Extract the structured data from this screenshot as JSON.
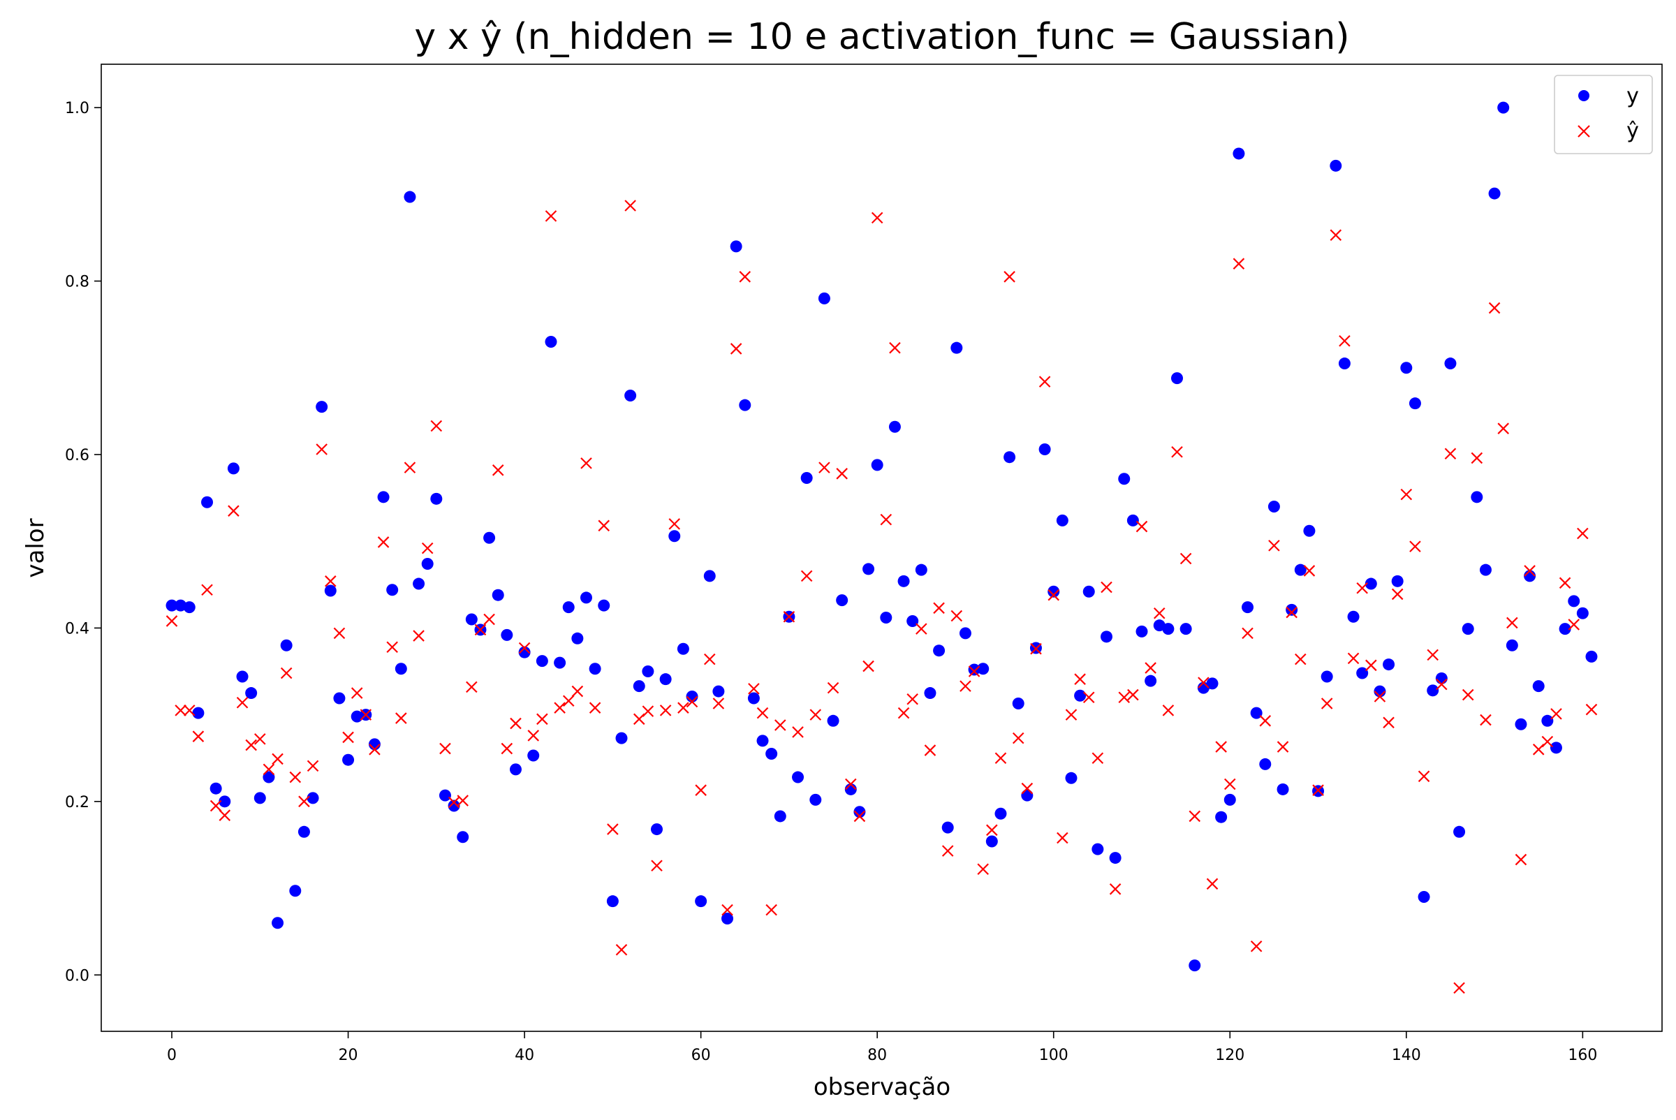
{
  "chart_data": {
    "type": "scatter",
    "title": "y x ŷ (n_hidden = 10 e activation_func = Gaussian)",
    "xlabel": "observação",
    "ylabel": "valor",
    "xlim": [
      -8,
      169
    ],
    "ylim": [
      -0.065,
      1.05
    ],
    "xticks": [
      0,
      20,
      40,
      60,
      80,
      100,
      120,
      140,
      160
    ],
    "yticks": [
      0.0,
      0.2,
      0.4,
      0.6,
      0.8,
      1.0
    ],
    "xtick_labels": [
      "0",
      "20",
      "40",
      "60",
      "80",
      "100",
      "120",
      "140",
      "160"
    ],
    "ytick_labels": [
      "0.0",
      "0.2",
      "0.4",
      "0.6",
      "0.8",
      "1.0"
    ],
    "grid": false,
    "legend_position": "top-right",
    "series": [
      {
        "name": "y",
        "marker": "circle",
        "color": "#0000ff",
        "x": [
          0,
          1,
          2,
          3,
          4,
          5,
          6,
          7,
          8,
          9,
          10,
          11,
          12,
          13,
          14,
          15,
          16,
          17,
          18,
          19,
          20,
          21,
          22,
          23,
          24,
          25,
          26,
          27,
          28,
          29,
          30,
          31,
          32,
          33,
          34,
          35,
          36,
          37,
          38,
          39,
          40,
          41,
          42,
          43,
          44,
          45,
          46,
          47,
          48,
          49,
          50,
          51,
          52,
          53,
          54,
          55,
          56,
          57,
          58,
          59,
          60,
          61,
          62,
          63,
          64,
          65,
          66,
          67,
          68,
          69,
          70,
          71,
          72,
          73,
          74,
          75,
          76,
          77,
          78,
          79,
          80,
          81,
          82,
          83,
          84,
          85,
          86,
          87,
          88,
          89,
          90,
          91,
          92,
          93,
          94,
          95,
          96,
          97,
          98,
          99,
          100,
          101,
          102,
          103,
          104,
          105,
          106,
          107,
          108,
          109,
          110,
          111,
          112,
          113,
          114,
          115,
          116,
          117,
          118,
          119,
          120,
          121,
          122,
          123,
          124,
          125,
          126,
          127,
          128,
          129,
          130,
          131,
          132,
          133,
          134,
          135,
          136,
          137,
          138,
          139,
          140,
          141,
          142,
          143,
          144,
          145,
          146,
          147,
          148,
          149,
          150,
          151,
          152,
          153,
          154,
          155,
          156,
          157,
          158,
          159,
          160,
          161
        ],
        "y": [
          0.426,
          0.426,
          0.424,
          0.302,
          0.545,
          0.215,
          0.2,
          0.584,
          0.344,
          0.325,
          0.204,
          0.228,
          0.06,
          0.38,
          0.097,
          0.165,
          0.204,
          0.655,
          0.443,
          0.319,
          0.248,
          0.298,
          0.3,
          0.266,
          0.551,
          0.444,
          0.353,
          0.897,
          0.451,
          0.474,
          0.549,
          0.207,
          0.195,
          0.159,
          0.41,
          0.398,
          0.504,
          0.438,
          0.392,
          0.237,
          0.372,
          0.253,
          0.362,
          0.73,
          0.36,
          0.424,
          0.388,
          0.435,
          0.353,
          0.426,
          0.085,
          0.273,
          0.668,
          0.333,
          0.35,
          0.168,
          0.341,
          0.506,
          0.376,
          0.321,
          0.085,
          0.46,
          0.327,
          0.065,
          0.84,
          0.657,
          0.319,
          0.27,
          0.255,
          0.183,
          0.413,
          0.228,
          0.573,
          0.202,
          0.78,
          0.293,
          0.432,
          0.214,
          0.188,
          0.468,
          0.588,
          0.412,
          0.632,
          0.454,
          0.408,
          0.467,
          0.325,
          0.374,
          0.17,
          0.723,
          0.394,
          0.352,
          0.353,
          0.154,
          0.186,
          0.597,
          0.313,
          0.207,
          0.377,
          0.606,
          0.442,
          0.524,
          0.227,
          0.322,
          0.442,
          0.145,
          0.39,
          0.135,
          0.572,
          0.524,
          0.396,
          0.339,
          0.403,
          0.399,
          0.688,
          0.399,
          0.011,
          0.331,
          0.336,
          0.182,
          0.202,
          0.947,
          0.424,
          0.302,
          0.243,
          0.54,
          0.214,
          0.421,
          0.467,
          0.512,
          0.212,
          0.344,
          0.933,
          0.705,
          0.413,
          0.348,
          0.451,
          0.327,
          0.358,
          0.454,
          0.7,
          0.659,
          0.09,
          0.328,
          0.342,
          0.705,
          0.165,
          0.399,
          0.551,
          0.467,
          0.901,
          1.0,
          0.38,
          0.289,
          0.46,
          0.333,
          0.293,
          0.262,
          0.399,
          0.431,
          0.417,
          0.367
        ]
      },
      {
        "name": "ŷ",
        "marker": "x",
        "color": "#ff0000",
        "x": [
          0,
          1,
          2,
          3,
          4,
          5,
          6,
          7,
          8,
          9,
          10,
          11,
          12,
          13,
          14,
          15,
          16,
          17,
          18,
          19,
          20,
          21,
          22,
          23,
          24,
          25,
          26,
          27,
          28,
          29,
          30,
          31,
          32,
          33,
          34,
          35,
          36,
          37,
          38,
          39,
          40,
          41,
          42,
          43,
          44,
          45,
          46,
          47,
          48,
          49,
          50,
          51,
          52,
          53,
          54,
          55,
          56,
          57,
          58,
          59,
          60,
          61,
          62,
          63,
          64,
          65,
          66,
          67,
          68,
          69,
          70,
          71,
          72,
          73,
          74,
          75,
          76,
          77,
          78,
          79,
          80,
          81,
          82,
          83,
          84,
          85,
          86,
          87,
          88,
          89,
          90,
          91,
          92,
          93,
          94,
          95,
          96,
          97,
          98,
          99,
          100,
          101,
          102,
          103,
          104,
          105,
          106,
          107,
          108,
          109,
          110,
          111,
          112,
          113,
          114,
          115,
          116,
          117,
          118,
          119,
          120,
          121,
          122,
          123,
          124,
          125,
          126,
          127,
          128,
          129,
          130,
          131,
          132,
          133,
          134,
          135,
          136,
          137,
          138,
          139,
          140,
          141,
          142,
          143,
          144,
          145,
          146,
          147,
          148,
          149,
          150,
          151,
          152,
          153,
          154,
          155,
          156,
          157,
          158,
          159,
          160,
          161
        ],
        "y": [
          0.408,
          0.305,
          0.305,
          0.275,
          0.444,
          0.195,
          0.184,
          0.535,
          0.314,
          0.265,
          0.272,
          0.237,
          0.249,
          0.348,
          0.228,
          0.2,
          0.241,
          0.606,
          0.454,
          0.394,
          0.274,
          0.325,
          0.3,
          0.26,
          0.499,
          0.378,
          0.296,
          0.585,
          0.391,
          0.492,
          0.633,
          0.261,
          0.199,
          0.201,
          0.332,
          0.398,
          0.41,
          0.582,
          0.261,
          0.29,
          0.377,
          0.276,
          0.295,
          0.875,
          0.308,
          0.316,
          0.327,
          0.59,
          0.308,
          0.518,
          0.168,
          0.029,
          0.887,
          0.295,
          0.304,
          0.126,
          0.305,
          0.52,
          0.308,
          0.315,
          0.213,
          0.364,
          0.313,
          0.075,
          0.722,
          0.805,
          0.33,
          0.302,
          0.075,
          0.288,
          0.413,
          0.28,
          0.46,
          0.3,
          0.585,
          0.331,
          0.578,
          0.22,
          0.183,
          0.356,
          0.873,
          0.525,
          0.723,
          0.302,
          0.318,
          0.399,
          0.259,
          0.423,
          0.143,
          0.414,
          0.333,
          0.35,
          0.122,
          0.167,
          0.25,
          0.805,
          0.273,
          0.215,
          0.376,
          0.684,
          0.438,
          0.158,
          0.3,
          0.341,
          0.32,
          0.25,
          0.447,
          0.099,
          0.32,
          0.323,
          0.517,
          0.354,
          0.417,
          0.305,
          0.603,
          0.48,
          0.183,
          0.337,
          0.105,
          0.263,
          0.22,
          0.82,
          0.394,
          0.033,
          0.293,
          0.495,
          0.263,
          0.418,
          0.364,
          0.466,
          0.213,
          0.313,
          0.853,
          0.731,
          0.365,
          0.446,
          0.357,
          0.321,
          0.291,
          0.439,
          0.554,
          0.494,
          0.229,
          0.369,
          0.335,
          0.601,
          -0.015,
          0.323,
          0.596,
          0.294,
          0.769,
          0.63,
          0.406,
          0.133,
          0.466,
          0.26,
          0.269,
          0.301,
          0.452,
          0.404,
          0.509,
          0.306
        ]
      }
    ]
  }
}
